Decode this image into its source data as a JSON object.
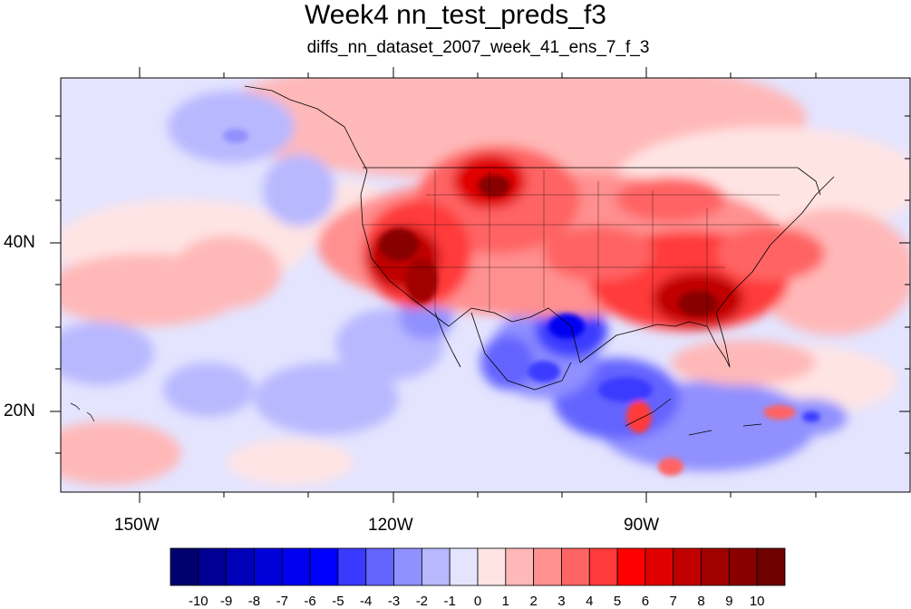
{
  "title": "Week4 nn_test_preds_f3",
  "subtitle": "diffs_nn_dataset_2007_week_41_ens_7_f_3",
  "axes": {
    "lon_labels": [
      "150W",
      "120W",
      "90W"
    ],
    "lat_labels": [
      "40N",
      "20N"
    ]
  },
  "colorbar": {
    "labels": [
      "-10",
      "-9",
      "-8",
      "-7",
      "-6",
      "-5",
      "-4",
      "-3",
      "-2",
      "-1",
      "0",
      "1",
      "2",
      "3",
      "4",
      "5",
      "6",
      "7",
      "8",
      "9",
      "10"
    ],
    "colors": [
      "#00006e",
      "#000094",
      "#0000b8",
      "#0000d8",
      "#0000f0",
      "#0000ff",
      "#3a3aff",
      "#6464ff",
      "#9090ff",
      "#b8b8ff",
      "#e4e4ff",
      "#ffe4e4",
      "#ffb8b8",
      "#ff9090",
      "#ff6464",
      "#ff3a3a",
      "#ff0000",
      "#e00000",
      "#c00000",
      "#a00000",
      "#880000",
      "#6e0000"
    ]
  }
}
